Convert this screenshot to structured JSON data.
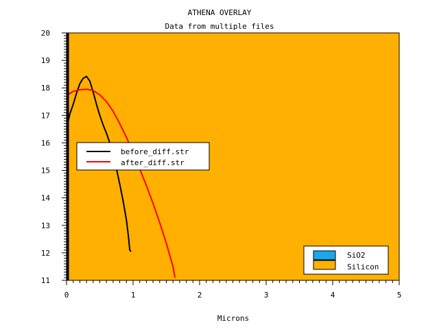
{
  "chart_data": {
    "type": "line",
    "title": "ATHENA OVERLAY",
    "subtitle": "Data from multiple files",
    "xlabel": "Microns",
    "ylabel": "",
    "xlim": [
      0,
      5
    ],
    "ylim": [
      11,
      20
    ],
    "x_ticks": [
      "0",
      "1",
      "2",
      "3",
      "4",
      "5"
    ],
    "y_ticks": [
      "11",
      "12",
      "13",
      "14",
      "15",
      "16",
      "17",
      "18",
      "19",
      "20"
    ],
    "background_color": "#ffb000",
    "series": [
      {
        "name": "before_diff.str",
        "color": "#000000",
        "x": [
          0.0,
          0.05,
          0.1,
          0.15,
          0.2,
          0.25,
          0.3,
          0.35,
          0.4,
          0.45,
          0.5,
          0.55,
          0.6,
          0.65,
          0.7,
          0.75,
          0.8,
          0.85,
          0.9,
          0.93,
          0.95,
          0.97
        ],
        "y": [
          16.5,
          17.05,
          17.4,
          17.8,
          18.15,
          18.35,
          18.42,
          18.25,
          17.85,
          17.4,
          17.0,
          16.65,
          16.35,
          16.0,
          15.55,
          15.05,
          14.5,
          13.9,
          13.2,
          12.6,
          12.1,
          12.05
        ]
      },
      {
        "name": "after_diff.str",
        "color": "#ff0000",
        "x": [
          0.0,
          0.05,
          0.1,
          0.2,
          0.3,
          0.4,
          0.5,
          0.6,
          0.7,
          0.8,
          0.9,
          1.0,
          1.1,
          1.2,
          1.3,
          1.4,
          1.5,
          1.6,
          1.63
        ],
        "y": [
          17.7,
          17.8,
          17.87,
          17.93,
          17.95,
          17.9,
          17.75,
          17.5,
          17.15,
          16.7,
          16.2,
          15.65,
          15.05,
          14.45,
          13.8,
          13.1,
          12.35,
          11.5,
          11.1
        ]
      }
    ],
    "legend": [
      "before_diff.str",
      "after_diff.str"
    ],
    "legend_position": "middle-left",
    "materials_legend": [
      {
        "name": "SiO2",
        "color": "#1aa7ec"
      },
      {
        "name": "Silicon",
        "color": "#ffb000"
      }
    ],
    "materials_legend_position": "bottom-right"
  }
}
